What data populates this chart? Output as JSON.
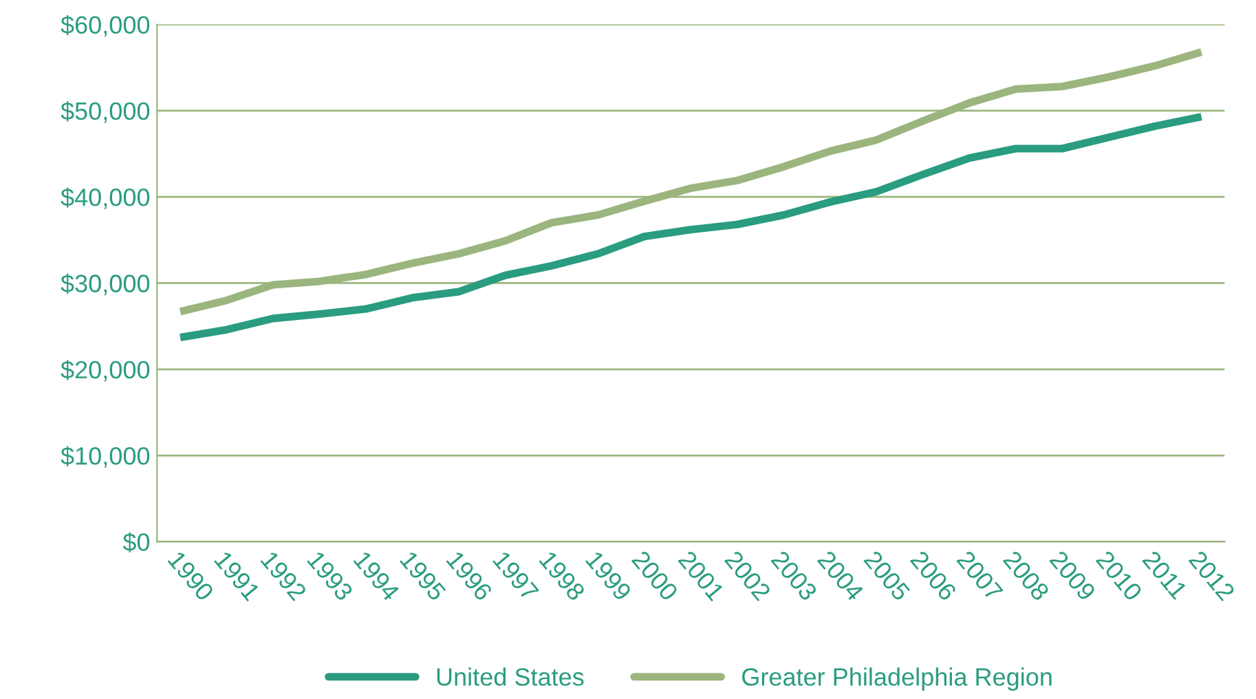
{
  "chart_data": {
    "type": "line",
    "categories": [
      "1990",
      "1991",
      "1992",
      "1993",
      "1994",
      "1995",
      "1996",
      "1997",
      "1998",
      "1999",
      "2000",
      "2001",
      "2002",
      "2003",
      "2004",
      "2005",
      "2006",
      "2007",
      "2008",
      "2009",
      "2010",
      "2011",
      "2012"
    ],
    "series": [
      {
        "name": "United States",
        "color": "#2a9c7f",
        "values": [
          23700,
          24600,
          25900,
          26400,
          27000,
          28300,
          29000,
          30900,
          32000,
          33400,
          35400,
          36200,
          36800,
          37900,
          39400,
          40600,
          42600,
          44500,
          45600,
          45600,
          46900,
          48200,
          49300
        ]
      },
      {
        "name": "Greater Philadelphia Region",
        "color": "#9bb57e",
        "values": [
          26700,
          28000,
          29800,
          30200,
          31000,
          32300,
          33400,
          34900,
          37000,
          37900,
          39500,
          41000,
          41900,
          43500,
          45300,
          46600,
          48800,
          50900,
          52500,
          52800,
          53900,
          55200,
          56800
        ]
      }
    ],
    "ylim": [
      0,
      60000
    ],
    "yticks": [
      {
        "value": 0,
        "label": "$0"
      },
      {
        "value": 10000,
        "label": "$10,000"
      },
      {
        "value": 20000,
        "label": "$20,000"
      },
      {
        "value": 30000,
        "label": "$30,000"
      },
      {
        "value": 40000,
        "label": "$40,000"
      },
      {
        "value": 50000,
        "label": "$50,000"
      },
      {
        "value": 60000,
        "label": "$60,000"
      }
    ],
    "grid": "y",
    "legend": "bottom",
    "marker": "none",
    "line_style": "solid"
  }
}
